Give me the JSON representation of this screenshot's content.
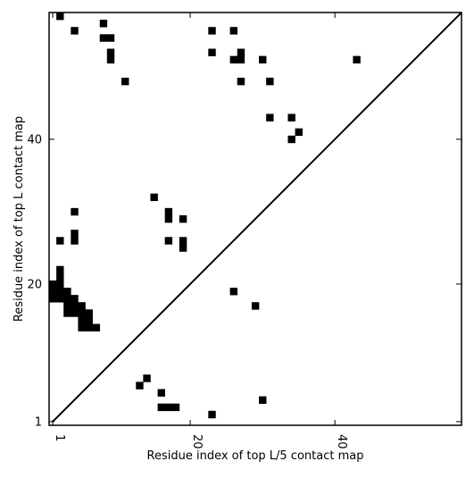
{
  "chart_data": {
    "type": "heatmap",
    "title": "",
    "xlabel": "Residue index of top L/5 contact map",
    "ylabel": "Residue index of top L contact map",
    "xlim": [
      0.5,
      57.5
    ],
    "ylim": [
      0.5,
      57.5
    ],
    "x_ticks": [
      {
        "value": 1,
        "label": "1"
      },
      {
        "value": 20,
        "label": "20"
      },
      {
        "value": 40,
        "label": "40"
      }
    ],
    "y_ticks": [
      {
        "value": 1,
        "label": "1"
      },
      {
        "value": 20,
        "label": "20"
      },
      {
        "value": 40,
        "label": "40"
      }
    ],
    "diagonal": true,
    "grid": false,
    "cell_color": "#000000",
    "contacts": [
      [
        2,
        57
      ],
      [
        4,
        55
      ],
      [
        8,
        56
      ],
      [
        8,
        54
      ],
      [
        9,
        54
      ],
      [
        9,
        52
      ],
      [
        9,
        51
      ],
      [
        11,
        48
      ],
      [
        23,
        55
      ],
      [
        26,
        55
      ],
      [
        23,
        52
      ],
      [
        26,
        51
      ],
      [
        27,
        51
      ],
      [
        27,
        52
      ],
      [
        30,
        51
      ],
      [
        43,
        51
      ],
      [
        27,
        48
      ],
      [
        31,
        48
      ],
      [
        31,
        43
      ],
      [
        34,
        43
      ],
      [
        35,
        41
      ],
      [
        34,
        40
      ],
      [
        15,
        32
      ],
      [
        17,
        30
      ],
      [
        17,
        29
      ],
      [
        19,
        29
      ],
      [
        4,
        30
      ],
      [
        4,
        27
      ],
      [
        4,
        26
      ],
      [
        2,
        26
      ],
      [
        17,
        26
      ],
      [
        19,
        26
      ],
      [
        19,
        25
      ],
      [
        2,
        22
      ],
      [
        2,
        21
      ],
      [
        1,
        20
      ],
      [
        2,
        20
      ],
      [
        1,
        19
      ],
      [
        2,
        19
      ],
      [
        3,
        19
      ],
      [
        1,
        18
      ],
      [
        2,
        18
      ],
      [
        3,
        18
      ],
      [
        4,
        18
      ],
      [
        3,
        17
      ],
      [
        4,
        17
      ],
      [
        5,
        17
      ],
      [
        3,
        16
      ],
      [
        4,
        16
      ],
      [
        5,
        16
      ],
      [
        6,
        16
      ],
      [
        5,
        15
      ],
      [
        6,
        15
      ],
      [
        5,
        14
      ],
      [
        6,
        14
      ],
      [
        7,
        14
      ],
      [
        26,
        19
      ],
      [
        29,
        17
      ],
      [
        14,
        7
      ],
      [
        13,
        6
      ],
      [
        16,
        5
      ],
      [
        16,
        3
      ],
      [
        17,
        3
      ],
      [
        18,
        3
      ],
      [
        30,
        4
      ],
      [
        23,
        2
      ]
    ]
  }
}
